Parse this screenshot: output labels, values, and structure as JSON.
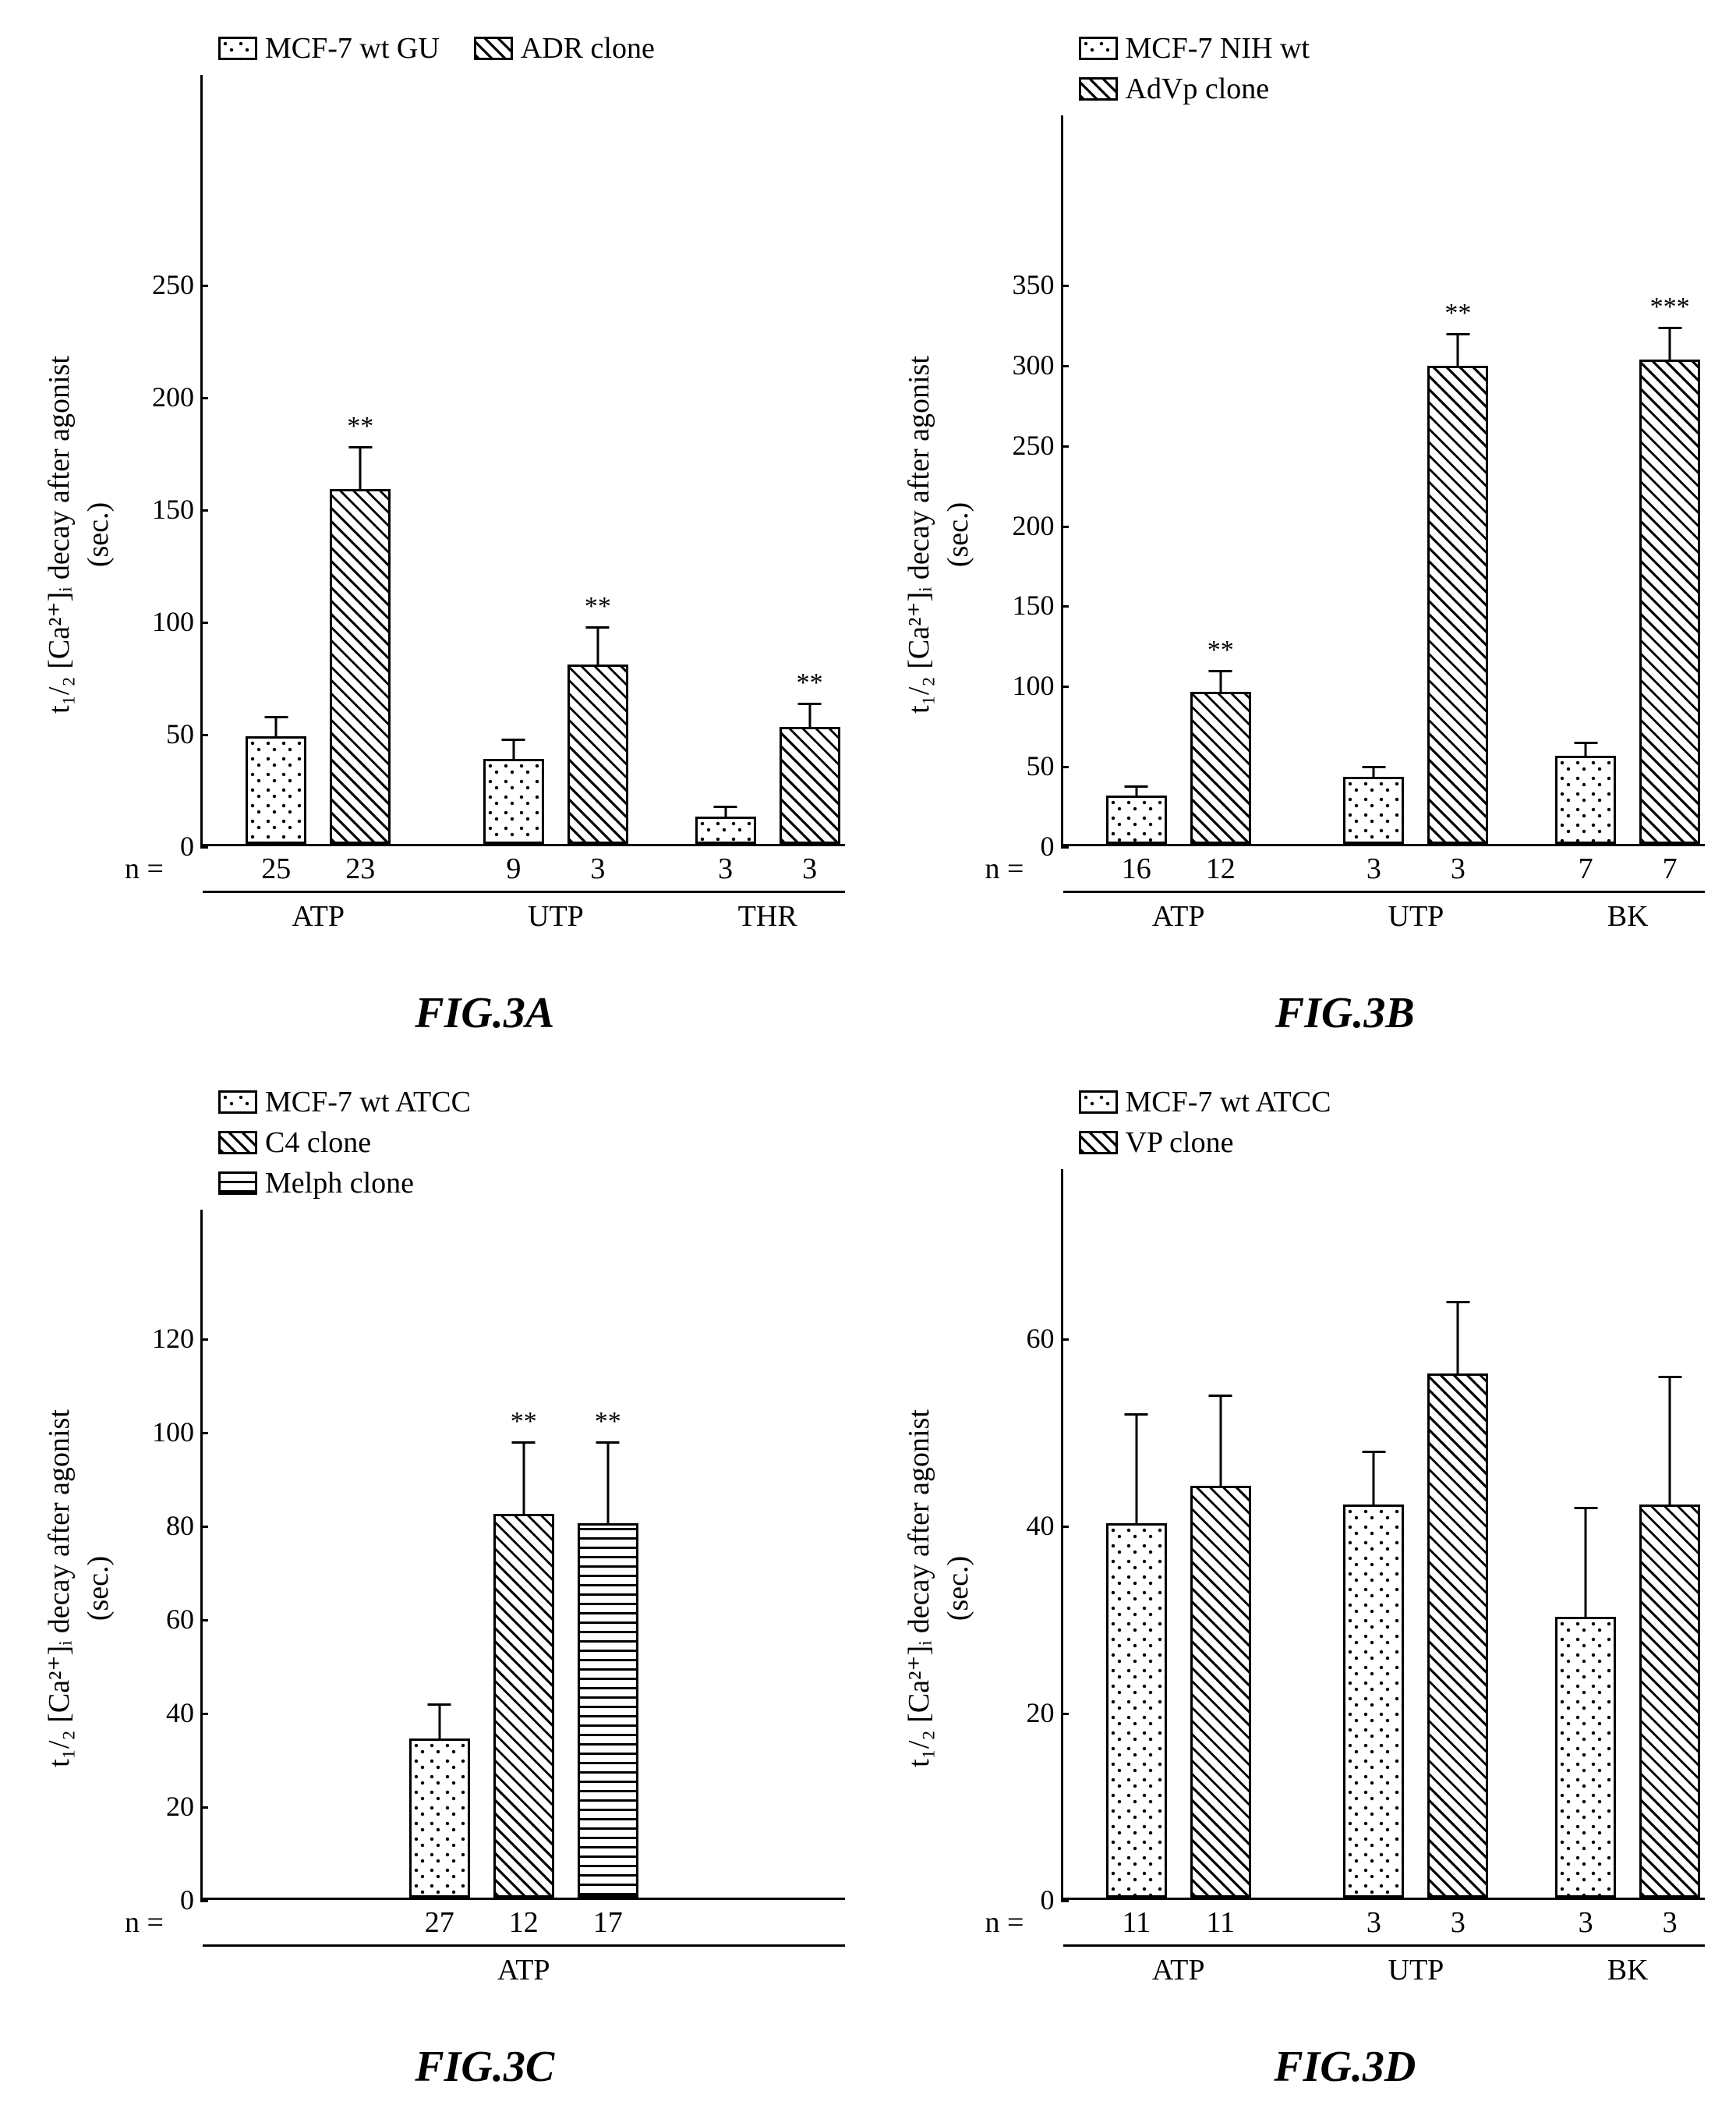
{
  "patterns": {
    "dots": "pat-dots",
    "diag": "pat-diag",
    "horiz": "pat-horiz"
  },
  "panels": [
    {
      "id": "A",
      "figLabel": "FIG.3A",
      "yLabel1": "t₁/₂ [Ca²⁺]ᵢ decay after agonist",
      "yLabel2": "(sec.)",
      "ymax": 250,
      "yticks": [
        0,
        50,
        100,
        150,
        200,
        250
      ],
      "legendRows": [
        [
          {
            "label": "MCF-7 wt GU",
            "pattern": "dots"
          },
          {
            "label": "ADR clone",
            "pattern": "diag"
          }
        ]
      ],
      "groups": [
        {
          "label": "ATP",
          "centerPct": 18,
          "bars": [
            {
              "pattern": "dots",
              "value": 48,
              "err": 10,
              "n": "25",
              "sig": ""
            },
            {
              "pattern": "diag",
              "value": 158,
              "err": 20,
              "n": "23",
              "sig": "**"
            }
          ]
        },
        {
          "label": "UTP",
          "centerPct": 55,
          "bars": [
            {
              "pattern": "dots",
              "value": 38,
              "err": 10,
              "n": "9",
              "sig": ""
            },
            {
              "pattern": "diag",
              "value": 80,
              "err": 18,
              "n": "3",
              "sig": "**"
            }
          ]
        },
        {
          "label": "THR",
          "centerPct": 88,
          "bars": [
            {
              "pattern": "dots",
              "value": 12,
              "err": 6,
              "n": "3",
              "sig": ""
            },
            {
              "pattern": "diag",
              "value": 52,
              "err": 12,
              "n": "3",
              "sig": "**"
            }
          ]
        }
      ]
    },
    {
      "id": "B",
      "figLabel": "FIG.3B",
      "yLabel1": "t₁/₂ [Ca²⁺]ᵢ decay after agonist",
      "yLabel2": "(sec.)",
      "ymax": 350,
      "yticks": [
        0,
        50,
        100,
        150,
        200,
        250,
        300,
        350
      ],
      "legendRows": [
        [
          {
            "label": "MCF-7 NIH wt",
            "pattern": "dots"
          }
        ],
        [
          {
            "label": "AdVp clone",
            "pattern": "diag"
          }
        ]
      ],
      "groups": [
        {
          "label": "ATP",
          "centerPct": 18,
          "bars": [
            {
              "pattern": "dots",
              "value": 30,
              "err": 8,
              "n": "16",
              "sig": ""
            },
            {
              "pattern": "diag",
              "value": 95,
              "err": 15,
              "n": "12",
              "sig": "**"
            }
          ]
        },
        {
          "label": "UTP",
          "centerPct": 55,
          "bars": [
            {
              "pattern": "dots",
              "value": 42,
              "err": 8,
              "n": "3",
              "sig": ""
            },
            {
              "pattern": "diag",
              "value": 298,
              "err": 22,
              "n": "3",
              "sig": "**"
            }
          ]
        },
        {
          "label": "BK",
          "centerPct": 88,
          "bars": [
            {
              "pattern": "dots",
              "value": 55,
              "err": 10,
              "n": "7",
              "sig": ""
            },
            {
              "pattern": "diag",
              "value": 302,
              "err": 22,
              "n": "7",
              "sig": "***"
            }
          ]
        }
      ]
    },
    {
      "id": "C",
      "figLabel": "FIG.3C",
      "yLabel1": "t₁/₂ [Ca²⁺]ᵢ decay after agonist",
      "yLabel2": "(sec.)",
      "ymax": 120,
      "yticks": [
        0,
        20,
        40,
        60,
        80,
        100,
        120
      ],
      "legendRows": [
        [
          {
            "label": "MCF-7 wt ATCC",
            "pattern": "dots"
          }
        ],
        [
          {
            "label": "C4 clone",
            "pattern": "diag"
          }
        ],
        [
          {
            "label": "Melph clone",
            "pattern": "horiz"
          }
        ]
      ],
      "groups": [
        {
          "label": "ATP",
          "centerPct": 50,
          "bars": [
            {
              "pattern": "dots",
              "value": 34,
              "err": 8,
              "n": "27",
              "sig": ""
            },
            {
              "pattern": "diag",
              "value": 82,
              "err": 16,
              "n": "12",
              "sig": "**"
            },
            {
              "pattern": "horiz",
              "value": 80,
              "err": 18,
              "n": "17",
              "sig": "**"
            }
          ]
        }
      ]
    },
    {
      "id": "D",
      "figLabel": "FIG.3D",
      "yLabel1": "t₁/₂ [Ca²⁺]ᵢ decay after agonist",
      "yLabel2": "(sec.)",
      "ymax": 60,
      "yticks": [
        0,
        20,
        40,
        60
      ],
      "legendRows": [
        [
          {
            "label": "MCF-7 wt ATCC",
            "pattern": "dots"
          }
        ],
        [
          {
            "label": "VP clone",
            "pattern": "diag"
          }
        ]
      ],
      "groups": [
        {
          "label": "ATP",
          "centerPct": 18,
          "bars": [
            {
              "pattern": "dots",
              "value": 40,
              "err": 12,
              "n": "11",
              "sig": ""
            },
            {
              "pattern": "diag",
              "value": 44,
              "err": 10,
              "n": "11",
              "sig": ""
            }
          ]
        },
        {
          "label": "UTP",
          "centerPct": 55,
          "bars": [
            {
              "pattern": "dots",
              "value": 42,
              "err": 6,
              "n": "3",
              "sig": ""
            },
            {
              "pattern": "diag",
              "value": 56,
              "err": 8,
              "n": "3",
              "sig": ""
            }
          ]
        },
        {
          "label": "BK",
          "centerPct": 88,
          "bars": [
            {
              "pattern": "dots",
              "value": 30,
              "err": 12,
              "n": "3",
              "sig": ""
            },
            {
              "pattern": "diag",
              "value": 42,
              "err": 14,
              "n": "3",
              "sig": ""
            }
          ]
        }
      ]
    }
  ],
  "plotHeightPx": 720,
  "barWidthPx": 78,
  "barGapPx": 30,
  "groupGapPx": 100
}
